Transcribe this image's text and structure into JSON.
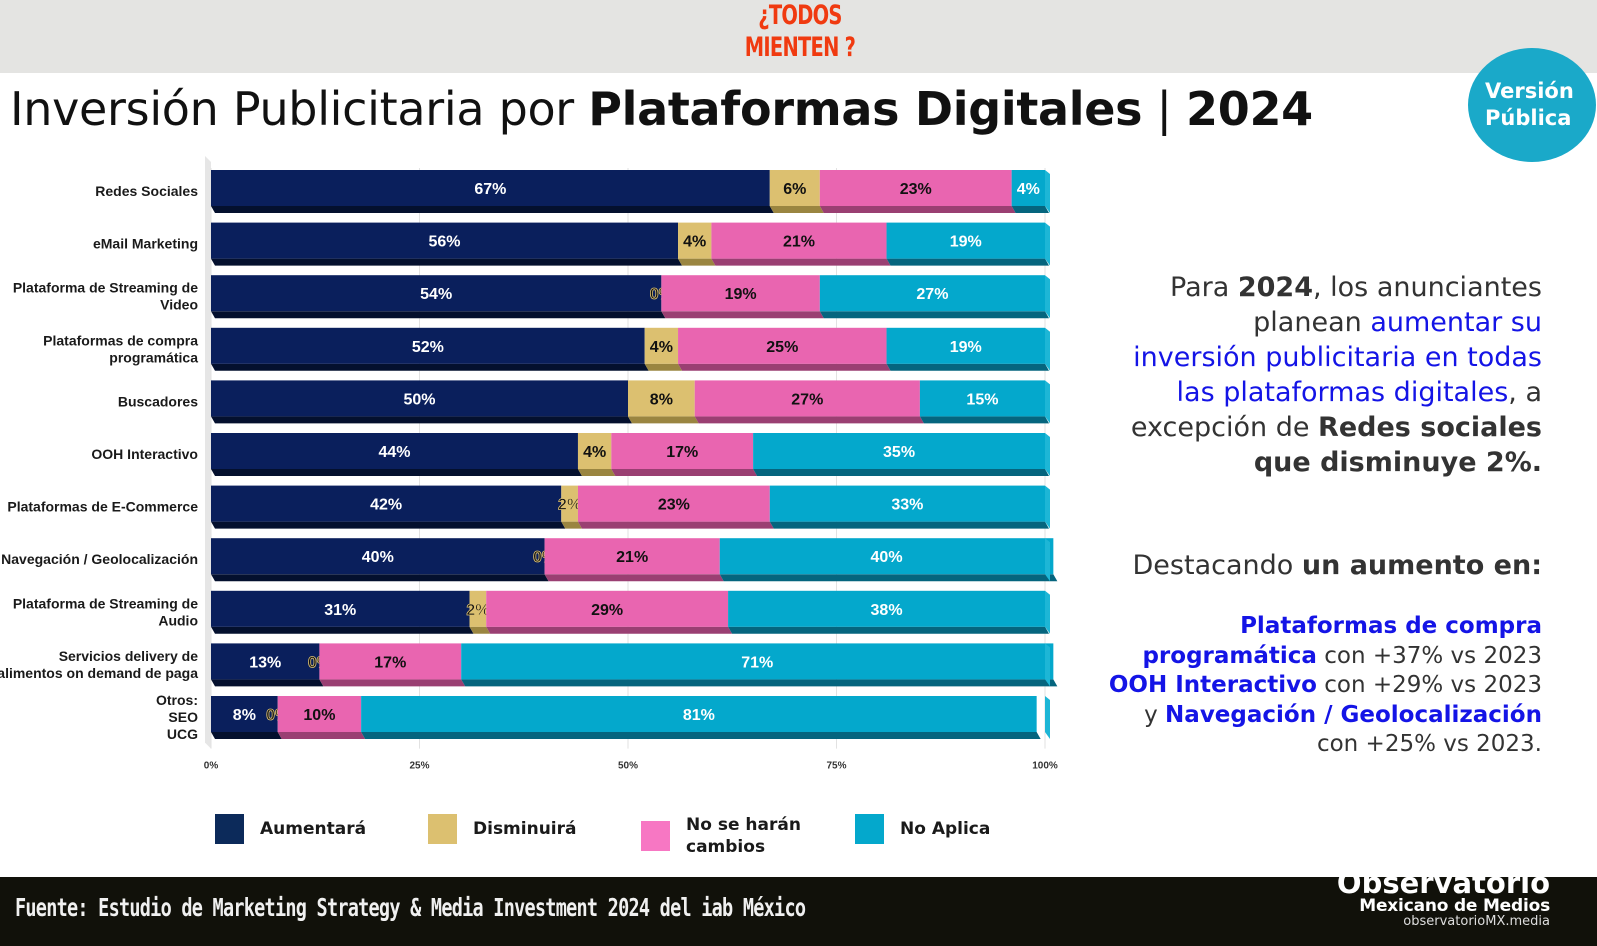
{
  "header": {
    "brand_line1": "¿TODOS",
    "brand_line2": "MIENTEN ?",
    "title_light": "Inversión  Publicitaria por ",
    "title_bold": "Plataformas Digitales",
    "title_sep": " | ",
    "title_year": "2024",
    "badge_line1": "Versión",
    "badge_line2": "Pública"
  },
  "colors": {
    "aumentara": "#0a1f5c",
    "disminuira": "#dcc070",
    "no_cambios": "#e965b0",
    "no_aplica": "#04a8cc",
    "brand": "#f03a10",
    "highlight": "#1414e6"
  },
  "chart_data": {
    "type": "bar",
    "orientation": "horizontal-stacked-100",
    "title": "Inversión Publicitaria por Plataformas Digitales | 2024",
    "xlabel": "",
    "ylabel": "",
    "xlim": [
      0,
      100
    ],
    "x_ticks": [
      "0%",
      "25%",
      "50%",
      "75%",
      "100%"
    ],
    "grid": true,
    "legend_position": "bottom",
    "categories": [
      [
        "Redes Sociales"
      ],
      [
        "eMail Marketing"
      ],
      [
        "Plataforma de Streaming de",
        "Video"
      ],
      [
        "Plataformas de compra",
        "programática"
      ],
      [
        "Buscadores"
      ],
      [
        "OOH Interactivo"
      ],
      [
        "Plataformas de E-Commerce"
      ],
      [
        "Navegación / Geolocalización"
      ],
      [
        "Plataforma de Streaming de",
        "Audio"
      ],
      [
        "Servicios delivery de",
        "alimentos on demand de paga"
      ],
      [
        "Otros:",
        "SEO",
        "UCG"
      ]
    ],
    "series": [
      {
        "name": "Aumentará",
        "key": "aumentara",
        "values": [
          67,
          56,
          54,
          52,
          50,
          44,
          42,
          40,
          31,
          13,
          8
        ]
      },
      {
        "name": "Disminuirá",
        "key": "disminuira",
        "values": [
          6,
          4,
          0,
          4,
          8,
          4,
          2,
          0,
          2,
          0,
          0
        ]
      },
      {
        "name": "No se harán cambios",
        "key": "no_cambios",
        "values": [
          23,
          21,
          19,
          25,
          27,
          17,
          23,
          21,
          29,
          17,
          10
        ]
      },
      {
        "name": "No Aplica",
        "key": "no_aplica",
        "values": [
          4,
          19,
          27,
          19,
          15,
          35,
          33,
          40,
          38,
          71,
          81
        ]
      }
    ]
  },
  "legend": [
    {
      "label_lines": [
        "Aumentará"
      ],
      "color_key": "aumentara"
    },
    {
      "label_lines": [
        "Disminuirá"
      ],
      "color_key": "disminuira"
    },
    {
      "label_lines": [
        "No se harán",
        "cambios"
      ],
      "color_key": "no_cambios"
    },
    {
      "label_lines": [
        "No Aplica"
      ],
      "color_key": "no_aplica"
    }
  ],
  "side_text": {
    "p1_a": "Para ",
    "p1_b": "2024",
    "p1_c": ", los anunciantes",
    "p1_d": "planean ",
    "p1_e": "aumentar su",
    "p1_f": "inversión publicitaria en todas",
    "p1_g": "las plataformas digitales",
    "p1_h": ", a",
    "p1_i": "excepción de ",
    "p1_j": "Redes sociales",
    "p1_k": "que disminuye 2%.",
    "p2_a": "Destacando ",
    "p2_b": "un aumento en:",
    "p3_a": "Plataformas de compra",
    "p3_b": "programática",
    "p3_c": " con +37% vs 2023",
    "p3_d": "OOH Interactivo",
    "p3_e": " con +29% vs 2023",
    "p3_f": "y ",
    "p3_g": "Navegación / Geolocalización",
    "p3_h": "con +25% vs 2023."
  },
  "footer": {
    "source": "Fuente: Estudio de Marketing Strategy & Media Investment 2024 del iab México",
    "logo_line1": "Observatorio",
    "logo_line2": "Mexicano de Medios",
    "logo_line3": "observatorioMX.media"
  }
}
